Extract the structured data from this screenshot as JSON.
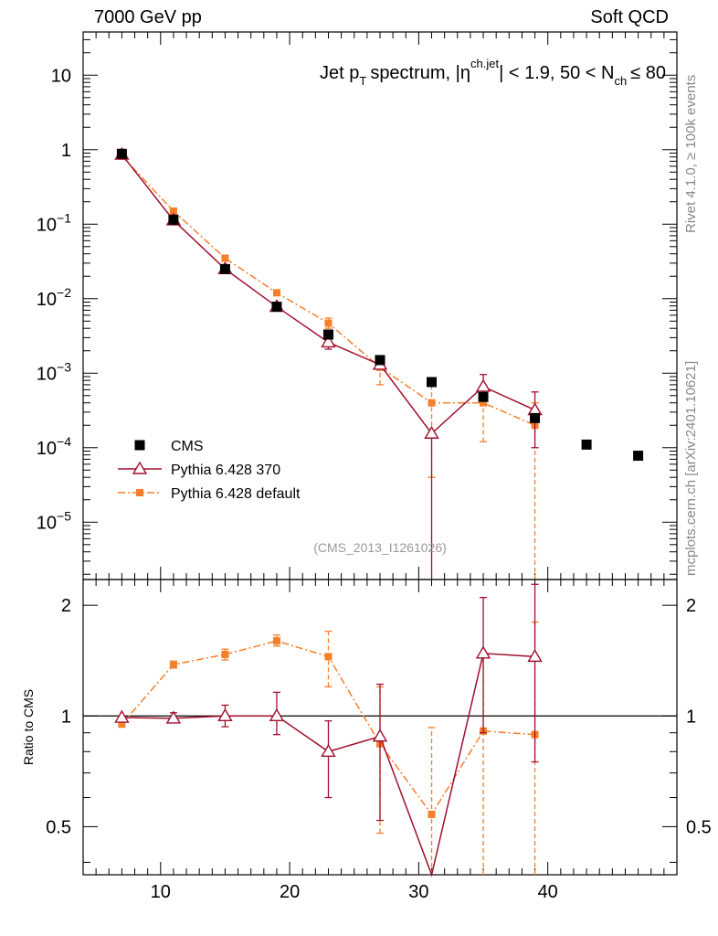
{
  "header": {
    "energy_label": "7000 GeV pp",
    "process_label": "Soft QCD"
  },
  "side_labels": {
    "rivet": "Rivet 4.1.0, ≥ 100k events",
    "mcplots": "mcplots.cern.ch [arXiv:2401.10621]"
  },
  "chart_data": {
    "type": "scatter",
    "title": "Jet pT spectrum, |ηch.jet| < 1.9, 50 < Nch ≤ 80",
    "title_parts": {
      "t1": "Jet p",
      "t2": "T",
      "t3": "spectrum, |η",
      "t4": "ch.jet",
      "t5": "| < 1.9, 50 < N",
      "t6": "ch",
      "t7": "≤ 80"
    },
    "analysis_tag": "(CMS_2013_I1261026)",
    "xlabel": "",
    "xlim": [
      4,
      50
    ],
    "x_ticks": [
      10,
      20,
      30,
      40
    ],
    "main_panel": {
      "yscale": "log",
      "ylim": [
        1.7e-06,
        38
      ],
      "y_tick_labels": [
        {
          "value": 10,
          "base": "10",
          "exp": ""
        },
        {
          "value": 1,
          "base": "1",
          "exp": ""
        },
        {
          "value": 0.1,
          "base": "10",
          "exp": "−1"
        },
        {
          "value": 0.01,
          "base": "10",
          "exp": "−2"
        },
        {
          "value": 0.001,
          "base": "10",
          "exp": "−3"
        },
        {
          "value": 0.0001,
          "base": "10",
          "exp": "−4"
        },
        {
          "value": 1e-05,
          "base": "10",
          "exp": "−5"
        }
      ]
    },
    "ratio_panel": {
      "ylabel": "Ratio to CMS",
      "ylim": [
        0.37,
        2.35
      ],
      "y_tick_labels": [
        {
          "value": 0.5,
          "label": "0.5"
        },
        {
          "value": 1,
          "label": "1"
        },
        {
          "value": 2,
          "label": "2"
        }
      ],
      "reference": 1
    },
    "legend": {
      "placement": "lower-left",
      "entries": [
        "CMS",
        "Pythia 6.428 370",
        "Pythia 6.428 default"
      ]
    },
    "series": [
      {
        "name": "CMS",
        "color": "#000000",
        "marker": "filled-square",
        "x": [
          7,
          11,
          15,
          19,
          23,
          27,
          31,
          35,
          39,
          43,
          47
        ],
        "y": [
          0.88,
          0.115,
          0.025,
          0.0078,
          0.0033,
          0.0015,
          0.00076,
          0.00048,
          0.00025,
          0.00011,
          7.8e-05
        ]
      },
      {
        "name": "Pythia 6.428 370",
        "color": "#a00f2e",
        "marker": "open-triangle",
        "line": "solid",
        "x": [
          7,
          11,
          15,
          19,
          23,
          27,
          31,
          35,
          39
        ],
        "y": [
          0.86,
          0.113,
          0.025,
          0.0078,
          0.0026,
          0.0013,
          0.000155,
          0.00066,
          0.00032
        ],
        "err_low": [
          0.86,
          0.113,
          0.025,
          0.0078,
          0.0021,
          0.0012,
          1.7e-06,
          0.00049,
          0.0001
        ],
        "err_high": [
          0.86,
          0.113,
          0.025,
          0.0078,
          0.0031,
          0.0015,
          0.00015,
          0.00096,
          0.00056
        ],
        "ratio": [
          0.99,
          0.985,
          1.0,
          1.0,
          0.8,
          0.88,
          0.2,
          1.48,
          1.45
        ],
        "ratio_err_low": [
          0.99,
          0.965,
          0.935,
          0.89,
          0.6,
          0.52,
          0.2,
          0.9,
          0.75
        ],
        "ratio_err_high": [
          0.99,
          1.02,
          1.07,
          1.16,
          0.97,
          1.22,
          0.2,
          2.1,
          2.28
        ]
      },
      {
        "name": "Pythia 6.428 default",
        "color": "#f57f2a",
        "marker": "filled-square-small",
        "line": "dash-dot",
        "x": [
          7,
          11,
          15,
          19,
          23,
          27,
          31,
          35,
          39
        ],
        "y": [
          0.82,
          0.15,
          0.035,
          0.012,
          0.0047,
          0.0012,
          0.0004,
          0.0004,
          0.0002
        ],
        "err_low": [
          0.82,
          0.15,
          0.035,
          0.012,
          0.004,
          0.0007,
          4e-05,
          0.00012,
          1.7e-06
        ],
        "err_high": [
          0.82,
          0.15,
          0.035,
          0.012,
          0.0055,
          0.0017,
          0.0007,
          0.00068,
          0.0004
        ],
        "ratio": [
          0.95,
          1.38,
          1.47,
          1.6,
          1.45,
          0.84,
          0.54,
          0.91,
          0.89
        ],
        "ratio_err_low": [
          0.95,
          1.35,
          1.42,
          1.55,
          1.2,
          0.48,
          0.37,
          0.37,
          0.37
        ],
        "ratio_err_high": [
          0.95,
          1.41,
          1.52,
          1.66,
          1.7,
          1.2,
          0.93,
          1.46,
          1.8
        ]
      }
    ]
  }
}
